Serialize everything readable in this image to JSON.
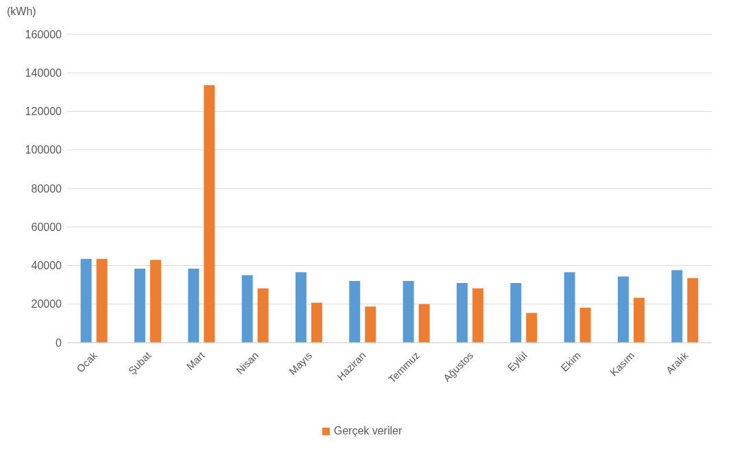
{
  "chart_data": {
    "type": "bar",
    "ylabel": "(kWh)",
    "categories": [
      "Ocak",
      "Şubat",
      "Mart",
      "Nisan",
      "Mayıs",
      "Haziran",
      "Temmuz",
      "Ağustos",
      "Eylül",
      "Ekim",
      "Kasım",
      "Aralık"
    ],
    "series": [
      {
        "color": "#5b9bd5",
        "values": [
          43500,
          38400,
          38400,
          35000,
          36500,
          32000,
          32000,
          30900,
          30900,
          36500,
          34300,
          37600
        ]
      },
      {
        "name": "Gerçek veriler",
        "color": "#ed7d31",
        "values": [
          43500,
          42900,
          133600,
          28200,
          20700,
          18800,
          20000,
          28200,
          15400,
          18100,
          23300,
          33500
        ]
      }
    ],
    "ylim": [
      0,
      160000
    ],
    "yticks": [
      0,
      20000,
      40000,
      60000,
      80000,
      100000,
      120000,
      140000,
      160000
    ],
    "grid": "y",
    "legend": "bottom"
  }
}
